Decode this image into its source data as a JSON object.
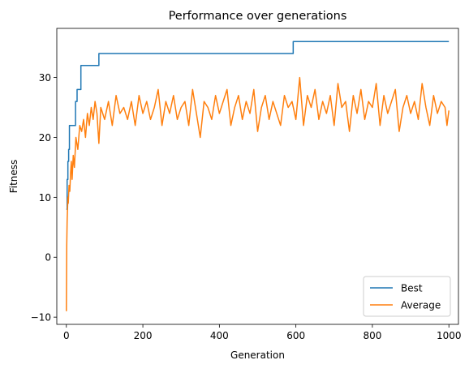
{
  "chart_data": {
    "type": "line",
    "title": "Performance over generations",
    "xlabel": "Generation",
    "ylabel": "Fitness",
    "xlim": [
      -25,
      1025
    ],
    "ylim": [
      -11.2,
      38.2
    ],
    "xticks": [
      0,
      200,
      400,
      600,
      800,
      1000
    ],
    "yticks": [
      -10,
      0,
      10,
      20,
      30
    ],
    "xtick_labels": [
      "0",
      "200",
      "400",
      "600",
      "800",
      "1000"
    ],
    "ytick_labels": [
      "−10",
      "0",
      "10",
      "20",
      "30"
    ],
    "grid": false,
    "legend_position": "lower right",
    "series": [
      {
        "name": "Best",
        "color": "#1f77b4",
        "step": true,
        "x": [
          0,
          2,
          4,
          6,
          8,
          12,
          24,
          28,
          38,
          85,
          593,
          1000
        ],
        "values": [
          8,
          13,
          16,
          18,
          22,
          22,
          26,
          28,
          32,
          34,
          36,
          36
        ]
      },
      {
        "name": "Average",
        "color": "#ff7f0e",
        "step": false,
        "x": [
          0,
          1,
          2,
          3,
          4,
          5,
          7,
          9,
          11,
          13,
          15,
          18,
          21,
          25,
          30,
          35,
          40,
          45,
          50,
          55,
          60,
          65,
          70,
          75,
          80,
          85,
          90,
          100,
          110,
          120,
          130,
          140,
          150,
          160,
          170,
          180,
          190,
          200,
          210,
          220,
          230,
          240,
          250,
          260,
          270,
          280,
          290,
          300,
          310,
          320,
          330,
          340,
          350,
          360,
          370,
          380,
          390,
          400,
          410,
          420,
          430,
          440,
          450,
          460,
          470,
          480,
          490,
          500,
          510,
          520,
          530,
          540,
          550,
          560,
          570,
          580,
          590,
          600,
          610,
          620,
          630,
          640,
          650,
          660,
          670,
          680,
          690,
          700,
          710,
          720,
          730,
          740,
          750,
          760,
          770,
          780,
          790,
          800,
          810,
          820,
          830,
          840,
          850,
          860,
          870,
          880,
          890,
          900,
          910,
          920,
          930,
          940,
          950,
          960,
          970,
          980,
          990,
          995,
          1000
        ],
        "values": [
          -9,
          2,
          6,
          8,
          10,
          9,
          12,
          11,
          14,
          16,
          13,
          17,
          15,
          20,
          18,
          22,
          21,
          23,
          20,
          24,
          22,
          25,
          23,
          26,
          24,
          19,
          25,
          23,
          26,
          22,
          27,
          24,
          25,
          23,
          26,
          22,
          27,
          24,
          26,
          23,
          25,
          28,
          22,
          26,
          24,
          27,
          23,
          25,
          26,
          22,
          28,
          24,
          20,
          26,
          25,
          23,
          27,
          24,
          26,
          28,
          22,
          25,
          27,
          23,
          26,
          24,
          28,
          21,
          25,
          27,
          23,
          26,
          24,
          22,
          27,
          25,
          26,
          23,
          30,
          22,
          27,
          25,
          28,
          23,
          26,
          24,
          27,
          22,
          29,
          25,
          26,
          21,
          27,
          24,
          28,
          23,
          26,
          25,
          29,
          22,
          27,
          24,
          26,
          28,
          21,
          25,
          27,
          24,
          26,
          23,
          29,
          25,
          22,
          27,
          24,
          26,
          25,
          22,
          24.5
        ]
      }
    ]
  }
}
